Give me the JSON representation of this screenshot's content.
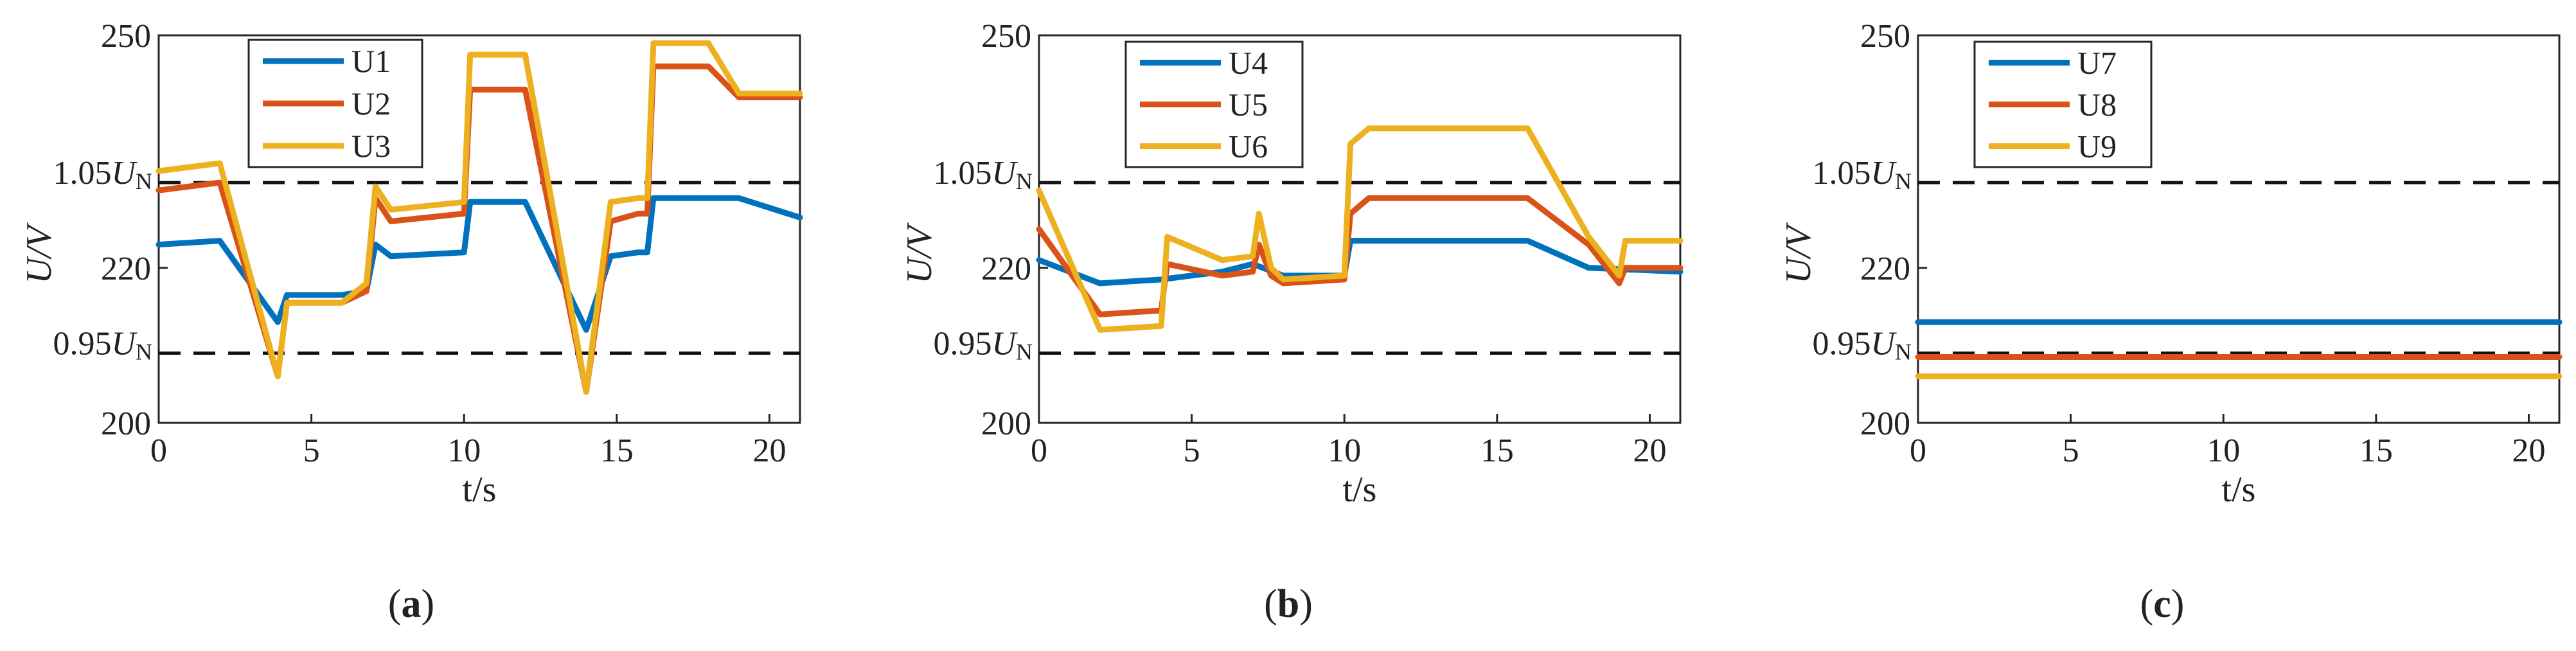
{
  "chart_data": [
    {
      "type": "line",
      "caption": "a",
      "xlabel": "t/s",
      "ylabel": "U/V",
      "xlim": [
        0,
        21
      ],
      "ylim": [
        200,
        250
      ],
      "xticks": [
        "0",
        "5",
        "10",
        "15",
        "20"
      ],
      "yticks": [
        "200",
        "220",
        "250"
      ],
      "reference_lines": [
        {
          "label_main": "1.05U",
          "label_sub": "N",
          "value": 231
        },
        {
          "label_main": "0.95U",
          "label_sub": "N",
          "value": 209
        }
      ],
      "legend_position": "top-center",
      "series": [
        {
          "name": "U1",
          "color": "#0072BD",
          "x": [
            0,
            2,
            3.9,
            4.2,
            6,
            6.8,
            7.1,
            7.6,
            10,
            10.2,
            12,
            14,
            14.8,
            15.7,
            16,
            16.2,
            19,
            21
          ],
          "y": [
            223,
            223.5,
            213,
            216.5,
            216.5,
            217,
            223,
            221.5,
            222,
            228.5,
            228.5,
            212,
            221.5,
            222,
            222,
            229,
            229,
            226.5
          ]
        },
        {
          "name": "U2",
          "color": "#D95319",
          "x": [
            0,
            2,
            3.9,
            4.2,
            6,
            6.8,
            7.1,
            7.6,
            10,
            10.2,
            12,
            14,
            14.8,
            15.7,
            16,
            16.2,
            18,
            19,
            21
          ],
          "y": [
            230,
            231,
            206,
            215.5,
            215.5,
            217,
            229,
            226,
            227,
            243,
            243,
            204,
            226,
            227,
            227,
            246,
            246,
            242,
            242
          ]
        },
        {
          "name": "U3",
          "color": "#EDB120",
          "x": [
            0,
            2,
            3.9,
            4.2,
            6,
            6.8,
            7.1,
            7.6,
            10,
            10.2,
            12,
            14,
            14.8,
            15.7,
            16,
            16.2,
            18,
            19,
            21
          ],
          "y": [
            232.5,
            233.5,
            206,
            215.5,
            215.5,
            218,
            230.5,
            227.5,
            228.5,
            247.5,
            247.5,
            204,
            228.5,
            229,
            229,
            249,
            249,
            242.5,
            242.5
          ]
        }
      ]
    },
    {
      "type": "line",
      "caption": "b",
      "xlabel": "t/s",
      "ylabel": "U/V",
      "xlim": [
        0,
        21
      ],
      "ylim": [
        200,
        250
      ],
      "xticks": [
        "0",
        "5",
        "10",
        "15",
        "20"
      ],
      "yticks": [
        "200",
        "220",
        "250"
      ],
      "reference_lines": [
        {
          "label_main": "1.05U",
          "label_sub": "N",
          "value": 231
        },
        {
          "label_main": "0.95U",
          "label_sub": "N",
          "value": 209
        }
      ],
      "legend_position": "top-left",
      "series": [
        {
          "name": "U4",
          "color": "#0072BD",
          "x": [
            0,
            2,
            4,
            6,
            7,
            8,
            10,
            10.2,
            16,
            18,
            21
          ],
          "y": [
            221,
            218,
            218.5,
            219.5,
            220.5,
            219,
            219,
            223.5,
            223.5,
            220,
            219.5
          ]
        },
        {
          "name": "U5",
          "color": "#D95319",
          "x": [
            0,
            2,
            4,
            4.2,
            6,
            7,
            7.2,
            7.6,
            8,
            10,
            10.2,
            10.8,
            16,
            18,
            19,
            19.2,
            21
          ],
          "y": [
            225,
            214,
            214.5,
            220.5,
            219,
            219.5,
            223,
            219,
            218,
            218.5,
            227,
            229,
            229,
            223,
            218,
            220,
            220
          ]
        },
        {
          "name": "U6",
          "color": "#EDB120",
          "x": [
            0,
            2,
            4,
            4.2,
            6,
            7,
            7.2,
            7.6,
            8,
            10,
            10.2,
            10.8,
            16,
            18,
            19,
            19.2,
            21
          ],
          "y": [
            230,
            212,
            212.5,
            224,
            221,
            221.5,
            227,
            220,
            218.5,
            219,
            236,
            238,
            238,
            224,
            219,
            223.5,
            223.5
          ]
        }
      ]
    },
    {
      "type": "line",
      "caption": "c",
      "xlabel": "t/s",
      "ylabel": "U/V",
      "xlim": [
        0,
        21
      ],
      "ylim": [
        200,
        250
      ],
      "xticks": [
        "0",
        "5",
        "10",
        "15",
        "20"
      ],
      "yticks": [
        "200",
        "220",
        "250"
      ],
      "reference_lines": [
        {
          "label_main": "1.05U",
          "label_sub": "N",
          "value": 231
        },
        {
          "label_main": "0.95U",
          "label_sub": "N",
          "value": 209
        }
      ],
      "legend_position": "top-left",
      "series": [
        {
          "name": "U7",
          "color": "#0072BD",
          "x": [
            0,
            21
          ],
          "y": [
            213,
            213
          ]
        },
        {
          "name": "U8",
          "color": "#D95319",
          "x": [
            0,
            21
          ],
          "y": [
            208.5,
            208.5
          ]
        },
        {
          "name": "U9",
          "color": "#EDB120",
          "x": [
            0,
            21
          ],
          "y": [
            206,
            206
          ]
        }
      ]
    }
  ]
}
